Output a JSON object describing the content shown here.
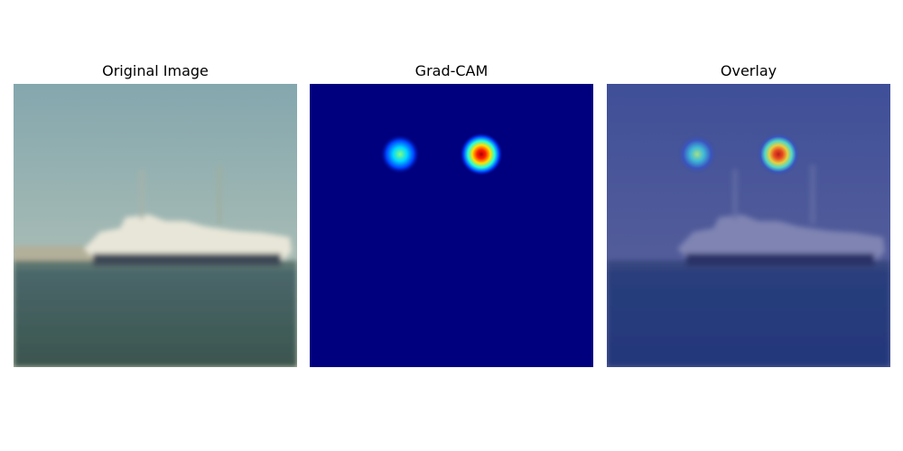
{
  "panels": [
    {
      "title": "Original Image",
      "content": "photo of a white ship on the sea"
    },
    {
      "title": "Grad-CAM",
      "content": "heatmap"
    },
    {
      "title": "Overlay",
      "content": "heatmap over photo"
    }
  ],
  "colors": {
    "sky_top": "#88aab0",
    "sky_bottom": "#c1c6b5",
    "sea_top": "#49666a",
    "sea_bottom": "#3c574f",
    "ship": "#e8e6d8",
    "hull": "#3e4a58",
    "heatmap_background": "#00007f",
    "overlay_tint": "#2a3d9a"
  }
}
